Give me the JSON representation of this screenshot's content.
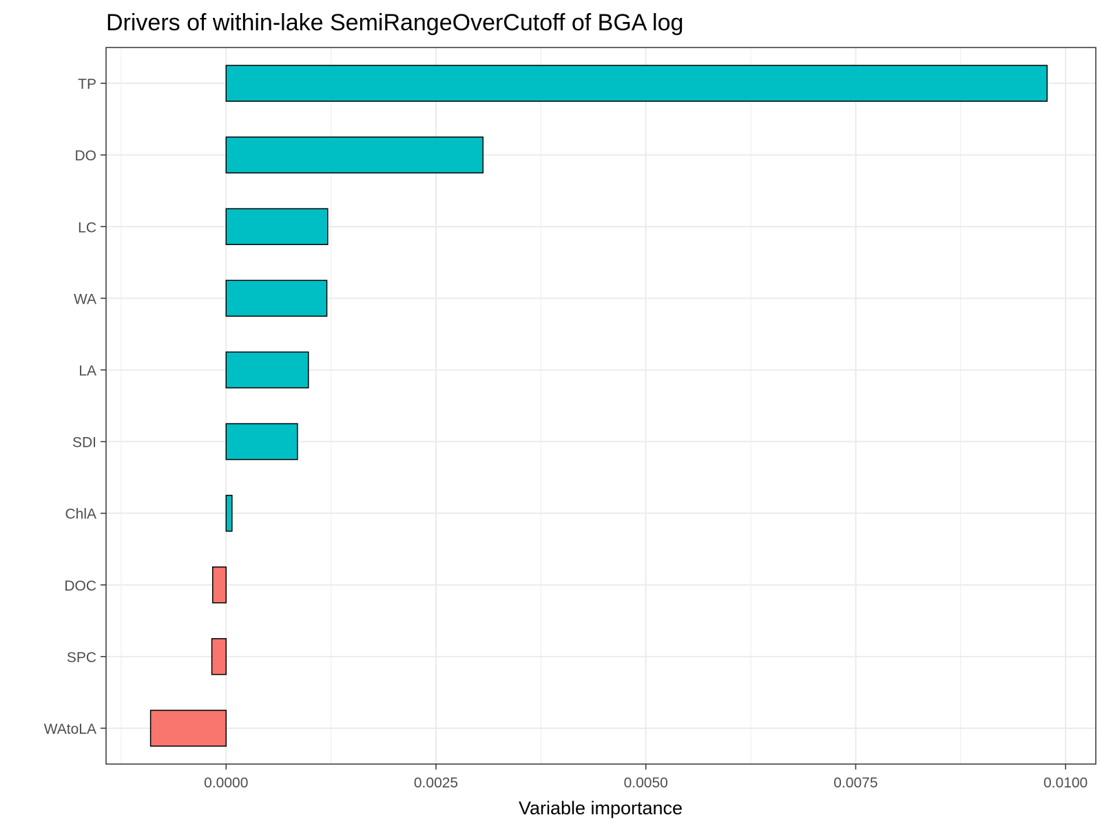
{
  "chart_data": {
    "type": "bar",
    "orientation": "horizontal",
    "title": "Drivers of within-lake SemiRangeOverCutoff of BGA log",
    "xlabel": "Variable importance",
    "ylabel": "",
    "categories": [
      "TP",
      "DO",
      "LC",
      "WA",
      "LA",
      "SDI",
      "ChlA",
      "DOC",
      "SPC",
      "WAtoLA"
    ],
    "values": [
      0.00978,
      0.00306,
      0.00121,
      0.0012,
      0.00098,
      0.00085,
      7e-05,
      -0.00016,
      -0.00017,
      -0.0009
    ],
    "xlim": [
      -0.00143,
      0.01036
    ],
    "x_ticks": [
      0.0,
      0.0025,
      0.005,
      0.0075,
      0.01
    ],
    "x_tick_labels": [
      "0.0000",
      "0.0025",
      "0.0050",
      "0.0075",
      "0.0100"
    ],
    "grid": true,
    "legend": "none",
    "colors": {
      "positive": "#00BFC4",
      "negative": "#F8766D",
      "bar_outline": "#000000",
      "grid": "#ebebeb",
      "panel_border": "#333333"
    }
  }
}
